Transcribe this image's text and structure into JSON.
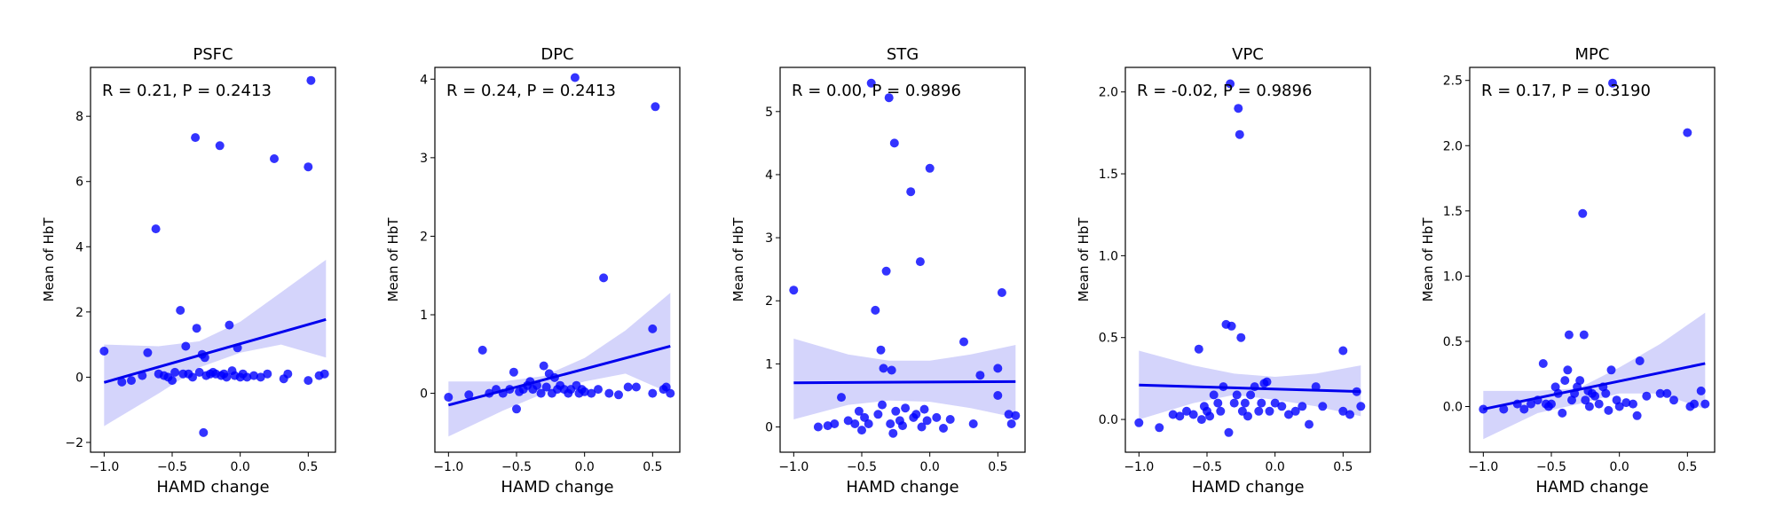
{
  "chart_data": [
    {
      "type": "scatter",
      "title": "PSFC",
      "xlabel": "HAMD change",
      "ylabel": "Mean of HbT",
      "annotation": "R = 0.21, P = 0.2413",
      "xlim": [
        -1.1,
        0.7
      ],
      "ylim": [
        -2.3,
        9.5
      ],
      "xticks": [
        -1.0,
        -0.5,
        0.0,
        0.5
      ],
      "xtick_labels": [
        "−1.0",
        "−0.5",
        "0.0",
        "0.5"
      ],
      "yticks": [
        -2,
        0,
        2,
        4,
        6,
        8
      ],
      "ytick_labels": [
        "−2",
        "0",
        "2",
        "4",
        "6",
        "8"
      ],
      "fit": [
        [
          -1.0,
          -0.16
        ],
        [
          0.63,
          1.77
        ]
      ],
      "ci_upper": [
        [
          -1.0,
          1.0
        ],
        [
          -0.6,
          0.95
        ],
        [
          -0.3,
          1.1
        ],
        [
          0.0,
          1.7
        ],
        [
          0.3,
          2.6
        ],
        [
          0.63,
          3.6
        ]
      ],
      "ci_lower": [
        [
          -1.0,
          -1.5
        ],
        [
          -0.6,
          -0.5
        ],
        [
          -0.3,
          0.3
        ],
        [
          0.0,
          0.75
        ],
        [
          0.3,
          1.0
        ],
        [
          0.63,
          0.6
        ]
      ],
      "points": [
        [
          -1.0,
          0.8
        ],
        [
          -0.87,
          -0.15
        ],
        [
          -0.8,
          -0.1
        ],
        [
          -0.72,
          0.05
        ],
        [
          -0.68,
          0.75
        ],
        [
          -0.62,
          4.55
        ],
        [
          -0.6,
          0.1
        ],
        [
          -0.56,
          0.05
        ],
        [
          -0.53,
          0.0
        ],
        [
          -0.5,
          -0.1
        ],
        [
          -0.48,
          0.15
        ],
        [
          -0.44,
          2.05
        ],
        [
          -0.42,
          0.1
        ],
        [
          -0.4,
          0.95
        ],
        [
          -0.38,
          0.1
        ],
        [
          -0.35,
          0.0
        ],
        [
          -0.33,
          7.35
        ],
        [
          -0.32,
          1.5
        ],
        [
          -0.3,
          0.15
        ],
        [
          -0.28,
          0.7
        ],
        [
          -0.27,
          -1.7
        ],
        [
          -0.26,
          0.6
        ],
        [
          -0.25,
          0.05
        ],
        [
          -0.22,
          0.1
        ],
        [
          -0.2,
          0.15
        ],
        [
          -0.18,
          0.1
        ],
        [
          -0.15,
          7.1
        ],
        [
          -0.14,
          0.05
        ],
        [
          -0.12,
          0.1
        ],
        [
          -0.1,
          0.0
        ],
        [
          -0.08,
          1.6
        ],
        [
          -0.06,
          0.2
        ],
        [
          -0.04,
          0.05
        ],
        [
          -0.02,
          0.9
        ],
        [
          0.0,
          0.0
        ],
        [
          0.02,
          0.1
        ],
        [
          0.05,
          0.0
        ],
        [
          0.1,
          0.05
        ],
        [
          0.15,
          0.0
        ],
        [
          0.2,
          0.1
        ],
        [
          0.25,
          6.7
        ],
        [
          0.32,
          -0.05
        ],
        [
          0.35,
          0.1
        ],
        [
          0.5,
          6.45
        ],
        [
          0.52,
          9.1
        ],
        [
          0.5,
          -0.1
        ],
        [
          0.58,
          0.05
        ],
        [
          0.62,
          0.1
        ]
      ]
    },
    {
      "type": "scatter",
      "title": "DPC",
      "xlabel": "HAMD change",
      "ylabel": "Mean of HbT",
      "annotation": "R = 0.24, P = 0.2413",
      "xlim": [
        -1.1,
        0.7
      ],
      "ylim": [
        -0.75,
        4.15
      ],
      "xticks": [
        -1.0,
        -0.5,
        0.0,
        0.5
      ],
      "xtick_labels": [
        "−1.0",
        "−0.5",
        "0.0",
        "0.5"
      ],
      "yticks": [
        0,
        1,
        2,
        3,
        4
      ],
      "ytick_labels": [
        "0",
        "1",
        "2",
        "3",
        "4"
      ],
      "fit": [
        [
          -1.0,
          -0.15
        ],
        [
          0.63,
          0.6
        ]
      ],
      "ci_upper": [
        [
          -1.0,
          0.15
        ],
        [
          -0.6,
          0.15
        ],
        [
          -0.3,
          0.22
        ],
        [
          0.0,
          0.45
        ],
        [
          0.3,
          0.8
        ],
        [
          0.63,
          1.28
        ]
      ],
      "ci_lower": [
        [
          -1.0,
          -0.55
        ],
        [
          -0.6,
          -0.22
        ],
        [
          -0.3,
          0.0
        ],
        [
          0.0,
          0.15
        ],
        [
          0.3,
          0.25
        ],
        [
          0.63,
          0.0
        ]
      ],
      "points": [
        [
          -1.0,
          -0.05
        ],
        [
          -0.85,
          -0.02
        ],
        [
          -0.75,
          0.55
        ],
        [
          -0.7,
          0.0
        ],
        [
          -0.65,
          0.05
        ],
        [
          -0.6,
          0.0
        ],
        [
          -0.55,
          0.05
        ],
        [
          -0.52,
          0.27
        ],
        [
          -0.5,
          -0.2
        ],
        [
          -0.48,
          0.02
        ],
        [
          -0.45,
          0.05
        ],
        [
          -0.42,
          0.1
        ],
        [
          -0.4,
          0.15
        ],
        [
          -0.38,
          0.05
        ],
        [
          -0.35,
          0.1
        ],
        [
          -0.32,
          0.0
        ],
        [
          -0.3,
          0.35
        ],
        [
          -0.28,
          0.08
        ],
        [
          -0.26,
          0.25
        ],
        [
          -0.24,
          0.0
        ],
        [
          -0.22,
          0.2
        ],
        [
          -0.2,
          0.05
        ],
        [
          -0.18,
          0.1
        ],
        [
          -0.15,
          0.05
        ],
        [
          -0.12,
          0.0
        ],
        [
          -0.1,
          0.05
        ],
        [
          -0.07,
          4.02
        ],
        [
          -0.06,
          0.1
        ],
        [
          -0.04,
          0.0
        ],
        [
          -0.02,
          0.05
        ],
        [
          0.0,
          0.02
        ],
        [
          0.05,
          0.0
        ],
        [
          0.1,
          0.05
        ],
        [
          0.14,
          1.47
        ],
        [
          0.18,
          0.0
        ],
        [
          0.25,
          -0.02
        ],
        [
          0.32,
          0.08
        ],
        [
          0.38,
          0.08
        ],
        [
          0.5,
          0.82
        ],
        [
          0.5,
          0.0
        ],
        [
          0.52,
          3.65
        ],
        [
          0.58,
          0.05
        ],
        [
          0.6,
          0.08
        ],
        [
          0.63,
          0.0
        ]
      ]
    },
    {
      "type": "scatter",
      "title": "STG",
      "xlabel": "HAMD change",
      "ylabel": "Mean of HbT",
      "annotation": "R = 0.00, P = 0.9896",
      "xlim": [
        -1.1,
        0.7
      ],
      "ylim": [
        -0.4,
        5.7
      ],
      "xticks": [
        -1.0,
        -0.5,
        0.0,
        0.5
      ],
      "xtick_labels": [
        "−1.0",
        "−0.5",
        "0.0",
        "0.5"
      ],
      "yticks": [
        0,
        1,
        2,
        3,
        4,
        5
      ],
      "ytick_labels": [
        "0",
        "1",
        "2",
        "3",
        "4",
        "5"
      ],
      "fit": [
        [
          -1.0,
          0.7
        ],
        [
          0.63,
          0.72
        ]
      ],
      "ci_upper": [
        [
          -1.0,
          1.4
        ],
        [
          -0.6,
          1.15
        ],
        [
          -0.3,
          1.05
        ],
        [
          0.0,
          1.05
        ],
        [
          0.3,
          1.15
        ],
        [
          0.63,
          1.3
        ]
      ],
      "ci_lower": [
        [
          -1.0,
          0.12
        ],
        [
          -0.6,
          0.35
        ],
        [
          -0.3,
          0.42
        ],
        [
          0.0,
          0.4
        ],
        [
          0.3,
          0.3
        ],
        [
          0.63,
          0.15
        ]
      ],
      "points": [
        [
          -1.0,
          2.17
        ],
        [
          -0.82,
          0.0
        ],
        [
          -0.75,
          0.02
        ],
        [
          -0.7,
          0.05
        ],
        [
          -0.65,
          0.47
        ],
        [
          -0.6,
          0.1
        ],
        [
          -0.55,
          0.05
        ],
        [
          -0.52,
          0.25
        ],
        [
          -0.5,
          -0.05
        ],
        [
          -0.48,
          0.15
        ],
        [
          -0.45,
          0.05
        ],
        [
          -0.43,
          5.45
        ],
        [
          -0.4,
          1.85
        ],
        [
          -0.38,
          0.2
        ],
        [
          -0.36,
          1.22
        ],
        [
          -0.35,
          0.35
        ],
        [
          -0.34,
          0.93
        ],
        [
          -0.32,
          2.47
        ],
        [
          -0.3,
          5.22
        ],
        [
          -0.29,
          0.05
        ],
        [
          -0.28,
          0.9
        ],
        [
          -0.27,
          -0.1
        ],
        [
          -0.26,
          4.5
        ],
        [
          -0.25,
          0.25
        ],
        [
          -0.22,
          0.1
        ],
        [
          -0.2,
          0.02
        ],
        [
          -0.18,
          0.3
        ],
        [
          -0.14,
          3.73
        ],
        [
          -0.12,
          0.15
        ],
        [
          -0.1,
          0.2
        ],
        [
          -0.07,
          2.62
        ],
        [
          -0.06,
          0.0
        ],
        [
          -0.04,
          0.28
        ],
        [
          -0.02,
          0.1
        ],
        [
          0.0,
          4.1
        ],
        [
          0.05,
          0.15
        ],
        [
          0.1,
          -0.02
        ],
        [
          0.15,
          0.12
        ],
        [
          0.25,
          1.35
        ],
        [
          0.32,
          0.05
        ],
        [
          0.37,
          0.82
        ],
        [
          0.5,
          0.93
        ],
        [
          0.5,
          0.5
        ],
        [
          0.53,
          2.13
        ],
        [
          0.58,
          0.2
        ],
        [
          0.6,
          0.05
        ],
        [
          0.63,
          0.18
        ]
      ]
    },
    {
      "type": "scatter",
      "title": "VPC",
      "xlabel": "HAMD change",
      "ylabel": "Mean of HbT",
      "annotation": "R = -0.02, P = 0.9896",
      "xlim": [
        -1.1,
        0.7
      ],
      "ylim": [
        -0.2,
        2.15
      ],
      "xticks": [
        -1.0,
        -0.5,
        0.0,
        0.5
      ],
      "xtick_labels": [
        "−1.0",
        "−0.5",
        "0.0",
        "0.5"
      ],
      "yticks": [
        0.0,
        0.5,
        1.0,
        1.5,
        2.0
      ],
      "ytick_labels": [
        "0.0",
        "0.5",
        "1.0",
        "1.5",
        "2.0"
      ],
      "fit": [
        [
          -1.0,
          0.21
        ],
        [
          0.63,
          0.17
        ]
      ],
      "ci_upper": [
        [
          -1.0,
          0.42
        ],
        [
          -0.6,
          0.33
        ],
        [
          -0.3,
          0.28
        ],
        [
          0.0,
          0.26
        ],
        [
          0.3,
          0.28
        ],
        [
          0.63,
          0.33
        ]
      ],
      "ci_lower": [
        [
          -1.0,
          0.0
        ],
        [
          -0.6,
          0.1
        ],
        [
          -0.3,
          0.15
        ],
        [
          0.0,
          0.12
        ],
        [
          0.3,
          0.08
        ],
        [
          0.63,
          0.02
        ]
      ],
      "points": [
        [
          -1.0,
          -0.02
        ],
        [
          -0.85,
          -0.05
        ],
        [
          -0.75,
          0.03
        ],
        [
          -0.7,
          0.02
        ],
        [
          -0.65,
          0.05
        ],
        [
          -0.6,
          0.03
        ],
        [
          -0.56,
          0.43
        ],
        [
          -0.54,
          0.0
        ],
        [
          -0.52,
          0.08
        ],
        [
          -0.5,
          0.05
        ],
        [
          -0.48,
          0.02
        ],
        [
          -0.45,
          0.15
        ],
        [
          -0.42,
          0.1
        ],
        [
          -0.4,
          0.05
        ],
        [
          -0.38,
          0.2
        ],
        [
          -0.36,
          0.58
        ],
        [
          -0.34,
          -0.08
        ],
        [
          -0.33,
          2.05
        ],
        [
          -0.32,
          0.57
        ],
        [
          -0.3,
          0.1
        ],
        [
          -0.28,
          0.15
        ],
        [
          -0.27,
          1.9
        ],
        [
          -0.26,
          1.74
        ],
        [
          -0.25,
          0.5
        ],
        [
          -0.24,
          0.05
        ],
        [
          -0.22,
          0.1
        ],
        [
          -0.2,
          0.02
        ],
        [
          -0.18,
          0.15
        ],
        [
          -0.15,
          0.2
        ],
        [
          -0.12,
          0.05
        ],
        [
          -0.1,
          0.1
        ],
        [
          -0.08,
          0.22
        ],
        [
          -0.06,
          0.23
        ],
        [
          -0.04,
          0.05
        ],
        [
          0.0,
          0.1
        ],
        [
          0.05,
          0.08
        ],
        [
          0.1,
          0.03
        ],
        [
          0.15,
          0.05
        ],
        [
          0.2,
          0.08
        ],
        [
          0.25,
          -0.03
        ],
        [
          0.3,
          0.2
        ],
        [
          0.35,
          0.08
        ],
        [
          0.5,
          0.42
        ],
        [
          0.5,
          0.05
        ],
        [
          0.55,
          0.03
        ],
        [
          0.6,
          0.17
        ],
        [
          0.63,
          0.08
        ]
      ]
    },
    {
      "type": "scatter",
      "title": "MPC",
      "xlabel": "HAMD change",
      "ylabel": "Mean of HbT",
      "annotation": "R = 0.17, P = 0.3190",
      "xlim": [
        -1.1,
        0.7
      ],
      "ylim": [
        -0.35,
        2.6
      ],
      "xticks": [
        -1.0,
        -0.5,
        0.0,
        0.5
      ],
      "xtick_labels": [
        "−1.0",
        "−0.5",
        "0.0",
        "0.5"
      ],
      "yticks": [
        0.0,
        0.5,
        1.0,
        1.5,
        2.0,
        2.5
      ],
      "ytick_labels": [
        "0.0",
        "0.5",
        "1.0",
        "1.5",
        "2.0",
        "2.5"
      ],
      "fit": [
        [
          -1.0,
          -0.02
        ],
        [
          0.63,
          0.33
        ]
      ],
      "ci_upper": [
        [
          -1.0,
          0.12
        ],
        [
          -0.6,
          0.12
        ],
        [
          -0.3,
          0.14
        ],
        [
          0.0,
          0.3
        ],
        [
          0.3,
          0.48
        ],
        [
          0.63,
          0.72
        ]
      ],
      "ci_lower": [
        [
          -1.0,
          -0.25
        ],
        [
          -0.6,
          -0.05
        ],
        [
          -0.3,
          0.02
        ],
        [
          0.0,
          0.1
        ],
        [
          0.3,
          0.1
        ],
        [
          0.63,
          -0.02
        ]
      ],
      "points": [
        [
          -1.0,
          -0.02
        ],
        [
          -0.85,
          -0.02
        ],
        [
          -0.75,
          0.02
        ],
        [
          -0.7,
          -0.02
        ],
        [
          -0.65,
          0.02
        ],
        [
          -0.6,
          0.05
        ],
        [
          -0.56,
          0.33
        ],
        [
          -0.54,
          0.02
        ],
        [
          -0.52,
          0.0
        ],
        [
          -0.5,
          0.02
        ],
        [
          -0.47,
          0.15
        ],
        [
          -0.45,
          0.1
        ],
        [
          -0.42,
          -0.05
        ],
        [
          -0.4,
          0.2
        ],
        [
          -0.38,
          0.28
        ],
        [
          -0.37,
          0.55
        ],
        [
          -0.35,
          0.05
        ],
        [
          -0.33,
          0.1
        ],
        [
          -0.31,
          0.15
        ],
        [
          -0.29,
          0.2
        ],
        [
          -0.27,
          1.48
        ],
        [
          -0.26,
          0.55
        ],
        [
          -0.25,
          0.05
        ],
        [
          -0.23,
          0.12
        ],
        [
          -0.22,
          0.0
        ],
        [
          -0.2,
          0.1
        ],
        [
          -0.18,
          0.08
        ],
        [
          -0.15,
          0.02
        ],
        [
          -0.12,
          0.15
        ],
        [
          -0.1,
          0.1
        ],
        [
          -0.08,
          -0.03
        ],
        [
          -0.06,
          0.28
        ],
        [
          -0.05,
          2.48
        ],
        [
          -0.02,
          0.05
        ],
        [
          0.0,
          0.0
        ],
        [
          0.05,
          0.03
        ],
        [
          0.1,
          0.02
        ],
        [
          0.13,
          -0.07
        ],
        [
          0.15,
          0.35
        ],
        [
          0.2,
          0.08
        ],
        [
          0.3,
          0.1
        ],
        [
          0.35,
          0.1
        ],
        [
          0.4,
          0.05
        ],
        [
          0.5,
          2.1
        ],
        [
          0.52,
          0.0
        ],
        [
          0.55,
          0.02
        ],
        [
          0.6,
          0.12
        ],
        [
          0.63,
          0.02
        ]
      ]
    }
  ]
}
